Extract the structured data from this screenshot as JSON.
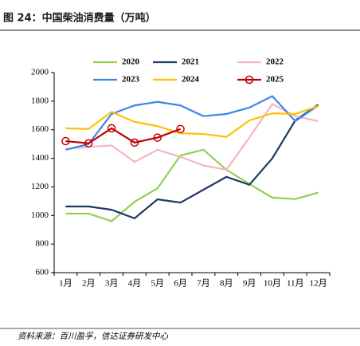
{
  "chart_data": {
    "type": "line",
    "title": "图 24：中国柴油消费量（万吨）",
    "source": "资料来源：百川盈孚，信达证券研发中心",
    "categories": [
      "1月",
      "2月",
      "3月",
      "4月",
      "5月",
      "6月",
      "7月",
      "8月",
      "9月",
      "10月",
      "11月",
      "12月"
    ],
    "series": [
      {
        "name": "2020",
        "color": "#92d050",
        "values": [
          1013,
          1013,
          960,
          1096,
          1190,
          1420,
          1460,
          1320,
          1220,
          1125,
          1115,
          1160
        ]
      },
      {
        "name": "2021",
        "color": "#203864",
        "values": [
          1063,
          1063,
          1040,
          980,
          1113,
          1090,
          1180,
          1270,
          1215,
          1400,
          1665,
          1775
        ]
      },
      {
        "name": "2022",
        "color": "#f4b6c2",
        "values": [
          1465,
          1480,
          1490,
          1375,
          1460,
          1410,
          1350,
          1320,
          1545,
          1780,
          1695,
          1660
        ]
      },
      {
        "name": "2023",
        "color": "#3f86e8",
        "values": [
          1460,
          1500,
          1710,
          1770,
          1795,
          1770,
          1695,
          1710,
          1755,
          1835,
          1660,
          1770
        ]
      },
      {
        "name": "2024",
        "color": "#ffc000",
        "values": [
          1610,
          1605,
          1725,
          1655,
          1625,
          1575,
          1570,
          1550,
          1665,
          1715,
          1710,
          1765
        ]
      },
      {
        "name": "2025",
        "color": "#c00000",
        "marker": "circle",
        "values": [
          1520,
          1505,
          1610,
          1510,
          1545,
          1605,
          null,
          null,
          null,
          null,
          null,
          null
        ]
      }
    ],
    "ylim": [
      600,
      2000
    ],
    "yticks": [
      600,
      800,
      1000,
      1200,
      1400,
      1600,
      1800,
      2000
    ],
    "grid": false
  }
}
